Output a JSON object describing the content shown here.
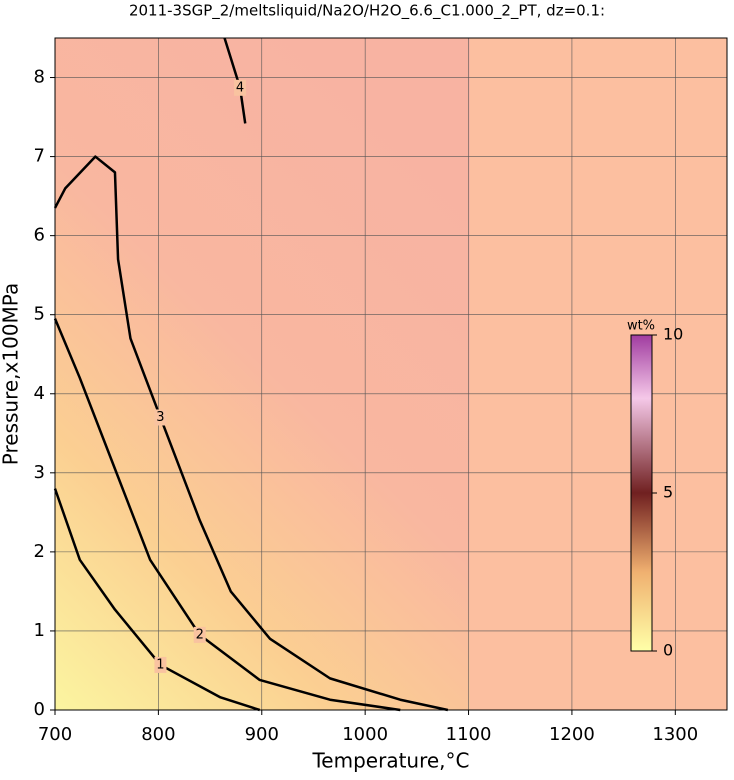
{
  "chart_data": {
    "type": "contour",
    "title": "2011-3SGP_2/meltsliquid/Na2O/H2O_6.6_C1.000_2_PT, dz=0.1:",
    "xlabel": "Temperature,°C",
    "ylabel": "Pressure,x100MPa",
    "xlim": [
      700,
      1350
    ],
    "ylim": [
      0,
      8.5
    ],
    "xticks": [
      700,
      800,
      900,
      1000,
      1100,
      1200,
      1300
    ],
    "yticks": [
      0,
      1,
      2,
      3,
      4,
      5,
      6,
      7,
      8
    ],
    "grid": true,
    "contours": [
      {
        "level": 1,
        "x": [
          700,
          724,
          758,
          802,
          860,
          898
        ],
        "y": [
          2.8,
          1.9,
          1.27,
          0.57,
          0.16,
          0
        ]
      },
      {
        "level": 2,
        "x": [
          700,
          724,
          758,
          792,
          840,
          898,
          966,
          1034
        ],
        "y": [
          4.95,
          4.2,
          3.05,
          1.9,
          0.95,
          0.38,
          0.13,
          0
        ]
      },
      {
        "level": 3,
        "x": [
          700,
          710,
          739,
          758,
          761,
          773,
          802,
          840,
          870,
          908,
          966,
          1034,
          1080
        ],
        "y": [
          6.35,
          6.6,
          7.0,
          6.8,
          5.7,
          4.7,
          3.7,
          2.4,
          1.5,
          0.9,
          0.4,
          0.13,
          0
        ]
      },
      {
        "level": 4,
        "x": [
          864,
          879,
          884
        ],
        "y": [
          8.5,
          7.87,
          7.42
        ]
      }
    ],
    "colorbar": {
      "label": "wt%",
      "lim": [
        0,
        10
      ],
      "ticks": [
        0,
        5,
        10
      ]
    }
  }
}
